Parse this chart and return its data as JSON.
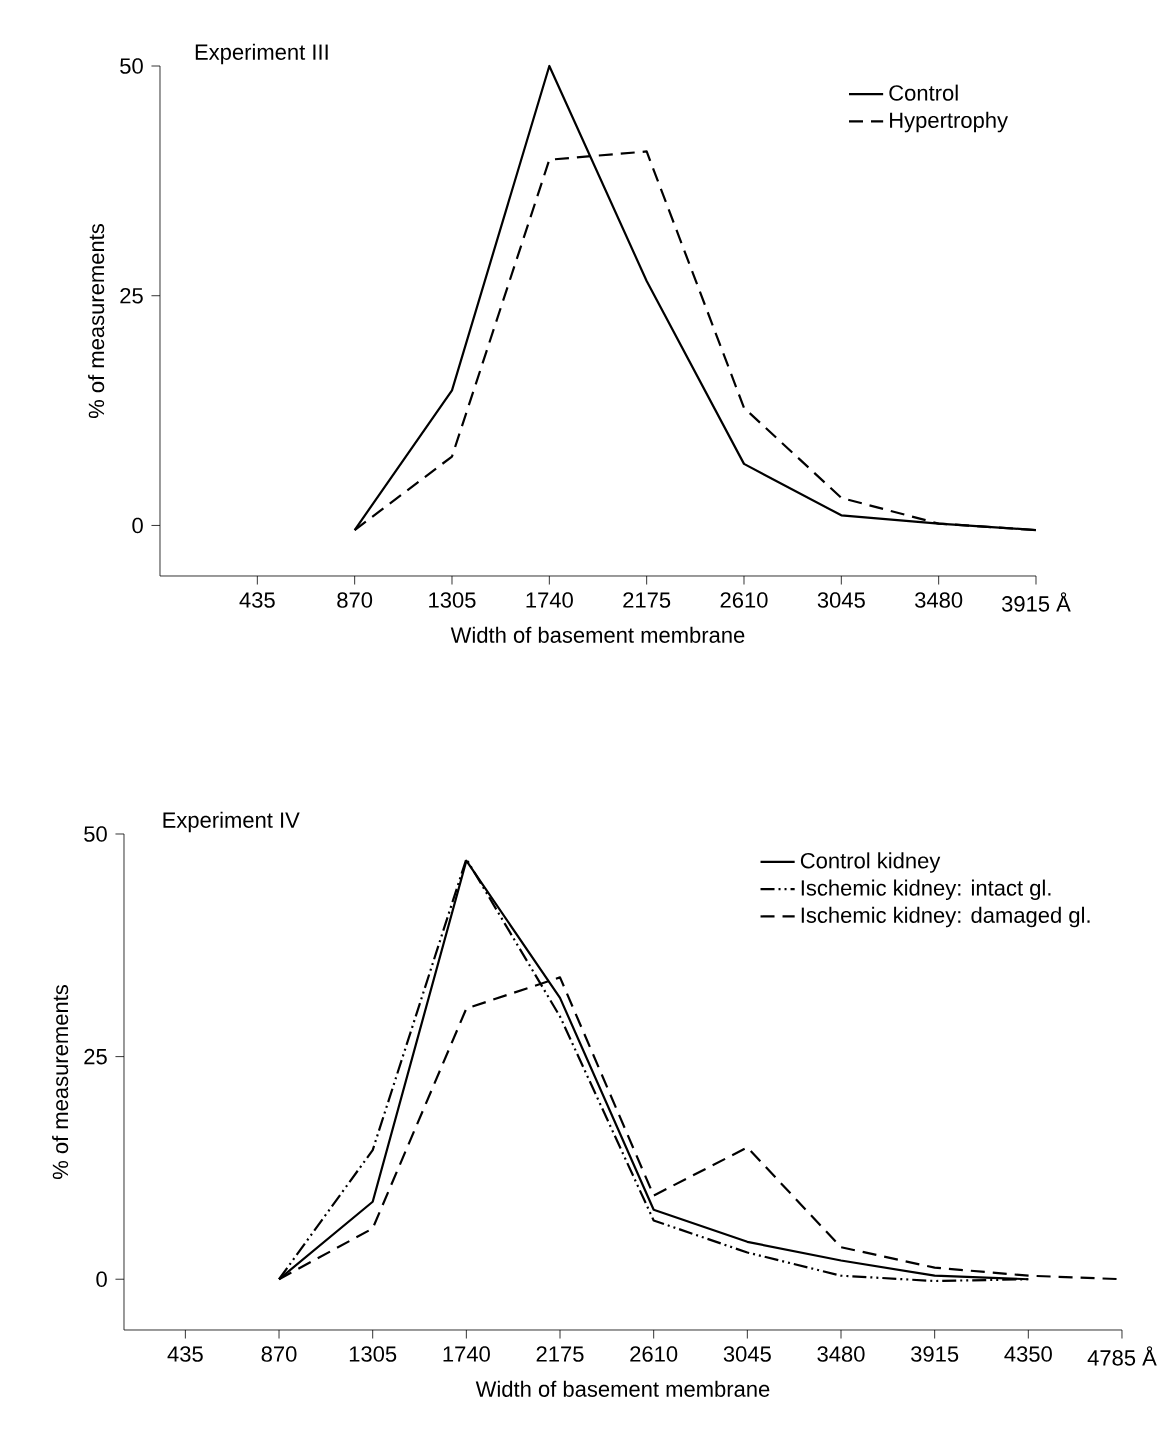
{
  "chart_data": [
    {
      "type": "line",
      "title": "Experiment III",
      "xlabel": "Width of basement membrane",
      "ylabel": "% of measurements",
      "xlim": [
        0,
        3915
      ],
      "ylim": [
        -5.5,
        50
      ],
      "xticks": [
        435,
        870,
        1305,
        1740,
        2175,
        2610,
        3045,
        {
          "value": 3480,
          "label": "3480"
        },
        {
          "value": 3915,
          "label": "3915 Å"
        }
      ],
      "yticks": [
        0,
        25,
        50
      ],
      "x": [
        870,
        1305,
        1740,
        2175,
        2610,
        3045,
        3480,
        3915
      ],
      "legend": "top right",
      "grid": false,
      "series": [
        {
          "name": "Control",
          "color": "#000000",
          "line_style": "solid",
          "values": [
            -0.5,
            14.7,
            50,
            26.6,
            6.7,
            1.1,
            0.2,
            -0.5
          ]
        },
        {
          "name": "Hypertrophy",
          "color": "#000000",
          "line_style": "dashed",
          "values": [
            -0.5,
            7.5,
            39.8,
            40.7,
            12.8,
            3,
            0.2,
            -0.5
          ]
        }
      ]
    },
    {
      "type": "line",
      "title": "Experiment IV",
      "xlabel": "Width of basement membrane",
      "ylabel": "% of measurements",
      "xlim": [
        150,
        4785
      ],
      "ylim": [
        -5.7,
        50
      ],
      "xticks": [
        435,
        870,
        1305,
        1740,
        2175,
        2610,
        3045,
        3480,
        3915,
        4350,
        {
          "value": 4785,
          "label": "4785 Å"
        }
      ],
      "yticks": [
        0,
        25,
        50
      ],
      "x": [
        870,
        1305,
        1740,
        2175,
        2610,
        3045,
        3480,
        3915,
        4350,
        4785
      ],
      "legend": "top right",
      "grid": false,
      "series": [
        {
          "name": "Control kidney",
          "color": "#000000",
          "line_style": "solid",
          "values": [
            0,
            8.7,
            47,
            31.6,
            7.8,
            4.2,
            2.1,
            0.4,
            0,
            null
          ]
        },
        {
          "name": "Ischemic kidney: intact gl.",
          "color": "#000000",
          "line_style": "dashdotted",
          "values": [
            0,
            14.5,
            47.2,
            29.5,
            6.6,
            3,
            0.4,
            -0.2,
            0,
            null
          ]
        },
        {
          "name": "Ischemic kidney: damaged gl.",
          "color": "#000000",
          "line_style": "dashed",
          "values": [
            0,
            5.7,
            30.4,
            33.9,
            9.4,
            14.8,
            3.6,
            1.3,
            0.4,
            0
          ]
        }
      ]
    }
  ]
}
